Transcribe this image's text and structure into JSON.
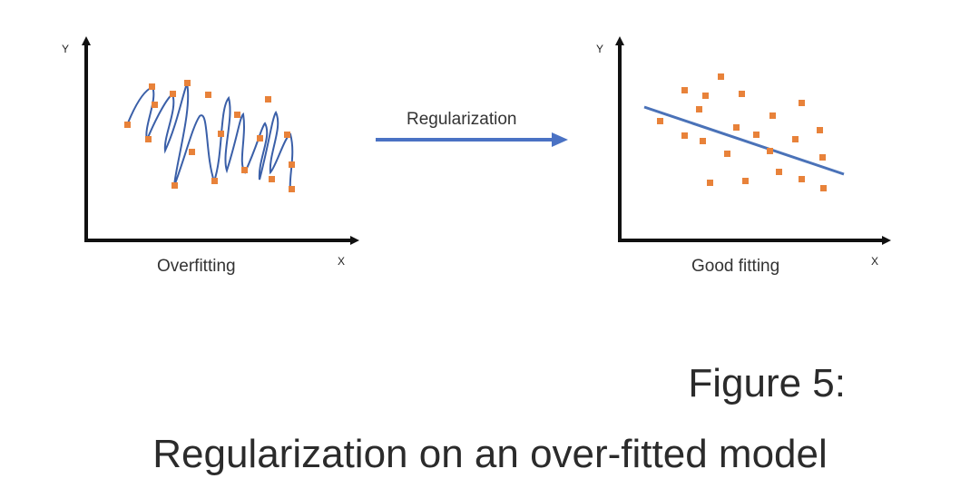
{
  "left_panel": {
    "y_axis_label": "Y",
    "x_axis_label": "X",
    "caption": "Overfitting"
  },
  "right_panel": {
    "y_axis_label": "Y",
    "x_axis_label": "X",
    "caption": "Good fitting"
  },
  "arrow": {
    "label": "Regularization"
  },
  "figure": {
    "number": "Figure 5:",
    "caption": "Regularization on an over-fitted model"
  },
  "colors": {
    "data_points": "#e8823a",
    "curve": "#3a5fa8",
    "arrow": "#4a72c4",
    "axes": "#111111"
  }
}
